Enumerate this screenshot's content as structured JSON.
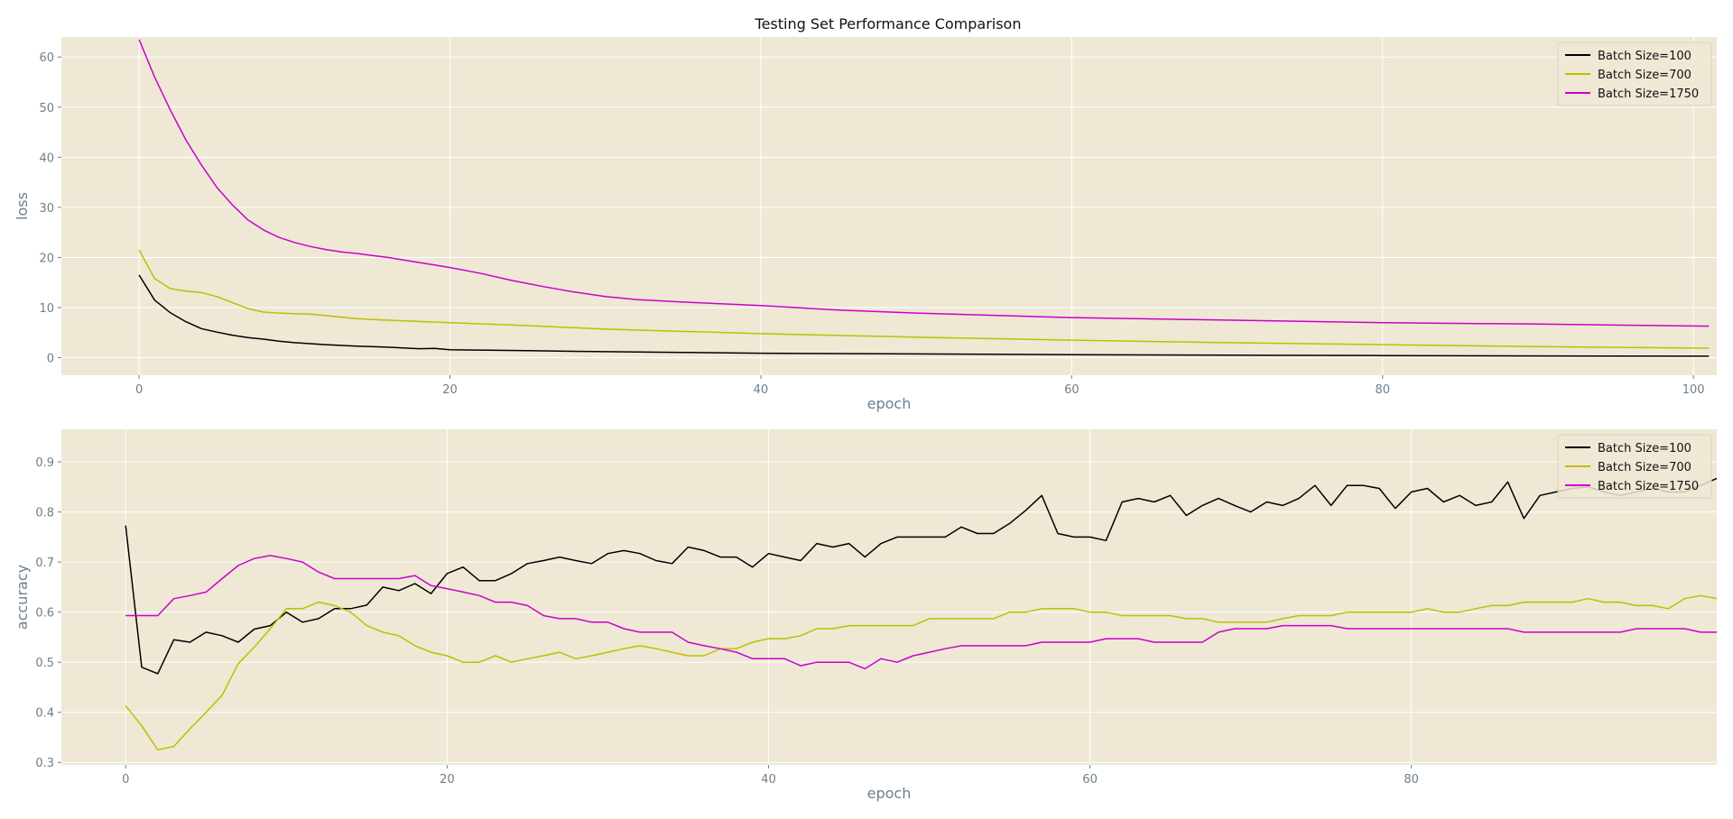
{
  "title": "Testing Set Performance Comparison",
  "chart_data": [
    {
      "type": "line",
      "title": "Testing Set Performance Comparison",
      "xlabel": "epoch",
      "ylabel": "loss",
      "xlim": [
        -5,
        101.5
      ],
      "ylim": [
        -3.5,
        64
      ],
      "xticks": [
        0,
        20,
        40,
        60,
        80,
        100
      ],
      "yticks": [
        0,
        10,
        20,
        30,
        40,
        50,
        60
      ],
      "grid": true,
      "legend_position": "top-right",
      "background_color": "#eee8d5",
      "series": [
        {
          "name": "Batch Size=100",
          "color": "#000000",
          "x": [
            0,
            1,
            2,
            3,
            4,
            5,
            6,
            7,
            8,
            9,
            10,
            12,
            14,
            16,
            18,
            19,
            20,
            25,
            30,
            35,
            40,
            50,
            60,
            70,
            80,
            90,
            101
          ],
          "values": [
            16.5,
            11.5,
            9.0,
            7.2,
            5.8,
            5.1,
            4.5,
            4.0,
            3.7,
            3.3,
            3.0,
            2.6,
            2.3,
            2.1,
            1.8,
            1.85,
            1.6,
            1.4,
            1.2,
            1.05,
            0.9,
            0.75,
            0.6,
            0.5,
            0.42,
            0.35,
            0.3
          ]
        },
        {
          "name": "Batch Size=700",
          "color": "#bfbf00",
          "x": [
            0,
            1,
            2,
            3,
            4,
            5,
            6,
            7,
            8,
            9,
            10,
            11,
            12,
            13,
            14,
            15,
            20,
            25,
            30,
            40,
            50,
            60,
            70,
            80,
            90,
            101
          ],
          "values": [
            21.5,
            15.8,
            13.8,
            13.3,
            13.0,
            12.2,
            11.0,
            9.8,
            9.1,
            8.9,
            8.8,
            8.7,
            8.4,
            8.1,
            7.8,
            7.6,
            7.0,
            6.4,
            5.7,
            4.8,
            4.1,
            3.5,
            3.0,
            2.6,
            2.2,
            1.9
          ]
        },
        {
          "name": "Batch Size=1750",
          "color": "#cc00cc",
          "x": [
            0,
            1,
            2,
            3,
            4,
            5,
            6,
            7,
            8,
            9,
            10,
            11,
            12,
            13,
            14,
            15,
            16,
            17,
            18,
            19,
            20,
            22,
            24,
            26,
            28,
            30,
            32,
            35,
            40,
            45,
            50,
            60,
            70,
            80,
            90,
            101
          ],
          "values": [
            63.5,
            56.0,
            49.5,
            43.5,
            38.5,
            34.0,
            30.5,
            27.5,
            25.5,
            24.0,
            23.0,
            22.2,
            21.6,
            21.1,
            20.8,
            20.4,
            20.0,
            19.5,
            19.0,
            18.5,
            18.0,
            16.8,
            15.4,
            14.2,
            13.1,
            12.2,
            11.6,
            11.1,
            10.4,
            9.5,
            8.9,
            8.0,
            7.5,
            7.0,
            6.7,
            6.3
          ]
        }
      ]
    },
    {
      "type": "line",
      "title": "",
      "xlabel": "epoch",
      "ylabel": "accuracy",
      "xlim": [
        -4,
        99
      ],
      "ylim": [
        0.295,
        0.965
      ],
      "xticks": [
        0,
        20,
        40,
        60,
        80
      ],
      "yticks": [
        0.3,
        0.4,
        0.5,
        0.6,
        0.7,
        0.8,
        0.9
      ],
      "grid": true,
      "legend_position": "top-right",
      "background_color": "#eee8d5",
      "series": [
        {
          "name": "Batch Size=100",
          "color": "#000000",
          "x": [
            0,
            1,
            2,
            3,
            4,
            5,
            6,
            7,
            8,
            9,
            10,
            11,
            12,
            13,
            14,
            15,
            16,
            17,
            18,
            19,
            20,
            21,
            22,
            23,
            24,
            25,
            26,
            27,
            28,
            29,
            30,
            31,
            32,
            33,
            34,
            35,
            36,
            37,
            38,
            39,
            40,
            41,
            42,
            43,
            44,
            45,
            46,
            47,
            48,
            49,
            50,
            51,
            52,
            53,
            54,
            55,
            56,
            57,
            58,
            59,
            60,
            61,
            62,
            63,
            64,
            65,
            66,
            67,
            68,
            69,
            70,
            71,
            72,
            73,
            74,
            75,
            76,
            77,
            78,
            79,
            80,
            81,
            82,
            83,
            84,
            85,
            86,
            87,
            88,
            89,
            90,
            91,
            92,
            93,
            94,
            95,
            96,
            97,
            98,
            99
          ],
          "values": [
            0.773,
            0.49,
            0.477,
            0.545,
            0.54,
            0.56,
            0.553,
            0.54,
            0.566,
            0.573,
            0.6,
            0.58,
            0.587,
            0.607,
            0.607,
            0.614,
            0.65,
            0.643,
            0.657,
            0.637,
            0.677,
            0.69,
            0.663,
            0.663,
            0.677,
            0.697,
            0.703,
            0.71,
            0.703,
            0.697,
            0.717,
            0.723,
            0.717,
            0.703,
            0.697,
            0.73,
            0.723,
            0.71,
            0.71,
            0.69,
            0.717,
            0.71,
            0.703,
            0.737,
            0.73,
            0.737,
            0.71,
            0.737,
            0.75,
            0.75,
            0.75,
            0.75,
            0.77,
            0.757,
            0.757,
            0.777,
            0.803,
            0.833,
            0.757,
            0.75,
            0.75,
            0.743,
            0.82,
            0.827,
            0.82,
            0.833,
            0.793,
            0.813,
            0.827,
            0.813,
            0.8,
            0.82,
            0.813,
            0.827,
            0.853,
            0.813,
            0.853,
            0.853,
            0.847,
            0.807,
            0.84,
            0.847,
            0.82,
            0.833,
            0.813,
            0.82,
            0.86,
            0.787,
            0.833,
            0.84,
            0.847,
            0.85,
            0.84,
            0.833,
            0.84,
            0.847,
            0.84,
            0.84,
            0.853,
            0.867
          ]
        },
        {
          "name": "Batch Size=700",
          "color": "#bfbf00",
          "x": [
            0,
            1,
            2,
            3,
            4,
            5,
            6,
            7,
            8,
            9,
            10,
            11,
            12,
            13,
            14,
            15,
            16,
            17,
            18,
            19,
            20,
            21,
            22,
            23,
            24,
            25,
            26,
            27,
            28,
            29,
            30,
            31,
            32,
            33,
            34,
            35,
            36,
            37,
            38,
            39,
            40,
            41,
            42,
            43,
            44,
            45,
            46,
            47,
            48,
            49,
            50,
            51,
            52,
            53,
            54,
            55,
            56,
            57,
            58,
            59,
            60,
            61,
            62,
            63,
            64,
            65,
            66,
            67,
            68,
            69,
            70,
            71,
            72,
            73,
            74,
            75,
            76,
            77,
            78,
            79,
            80,
            81,
            82,
            83,
            84,
            85,
            86,
            87,
            88,
            89,
            90,
            91,
            92,
            93,
            94,
            95,
            96,
            97,
            98,
            99
          ],
          "values": [
            0.413,
            0.373,
            0.325,
            0.332,
            0.367,
            0.4,
            0.434,
            0.497,
            0.53,
            0.567,
            0.607,
            0.607,
            0.62,
            0.613,
            0.6,
            0.573,
            0.56,
            0.553,
            0.533,
            0.52,
            0.513,
            0.5,
            0.5,
            0.513,
            0.5,
            0.507,
            0.513,
            0.52,
            0.507,
            0.513,
            0.52,
            0.527,
            0.533,
            0.527,
            0.52,
            0.513,
            0.513,
            0.527,
            0.527,
            0.54,
            0.547,
            0.547,
            0.553,
            0.567,
            0.567,
            0.573,
            0.573,
            0.573,
            0.573,
            0.573,
            0.587,
            0.587,
            0.587,
            0.587,
            0.587,
            0.6,
            0.6,
            0.607,
            0.607,
            0.607,
            0.6,
            0.6,
            0.593,
            0.593,
            0.593,
            0.593,
            0.587,
            0.587,
            0.58,
            0.58,
            0.58,
            0.58,
            0.587,
            0.593,
            0.593,
            0.593,
            0.6,
            0.6,
            0.6,
            0.6,
            0.6,
            0.607,
            0.6,
            0.6,
            0.607,
            0.613,
            0.613,
            0.62,
            0.62,
            0.62,
            0.62,
            0.627,
            0.62,
            0.62,
            0.613,
            0.613,
            0.607,
            0.627,
            0.633,
            0.627
          ]
        },
        {
          "name": "Batch Size=1750",
          "color": "#cc00cc",
          "x": [
            0,
            1,
            2,
            3,
            4,
            5,
            6,
            7,
            8,
            9,
            10,
            11,
            12,
            13,
            14,
            15,
            16,
            17,
            18,
            19,
            20,
            21,
            22,
            23,
            24,
            25,
            26,
            27,
            28,
            29,
            30,
            31,
            32,
            33,
            34,
            35,
            36,
            37,
            38,
            39,
            40,
            41,
            42,
            43,
            44,
            45,
            46,
            47,
            48,
            49,
            50,
            51,
            52,
            53,
            54,
            55,
            56,
            57,
            58,
            59,
            60,
            61,
            62,
            63,
            64,
            65,
            66,
            67,
            68,
            69,
            70,
            71,
            72,
            73,
            74,
            75,
            76,
            77,
            78,
            79,
            80,
            81,
            82,
            83,
            84,
            85,
            86,
            87,
            88,
            89,
            90,
            91,
            92,
            93,
            94,
            95,
            96,
            97,
            98,
            99
          ],
          "values": [
            0.593,
            0.593,
            0.593,
            0.627,
            0.633,
            0.64,
            0.667,
            0.693,
            0.707,
            0.713,
            0.707,
            0.7,
            0.68,
            0.667,
            0.667,
            0.667,
            0.667,
            0.667,
            0.673,
            0.653,
            0.647,
            0.64,
            0.633,
            0.62,
            0.62,
            0.613,
            0.593,
            0.587,
            0.587,
            0.58,
            0.58,
            0.567,
            0.56,
            0.56,
            0.56,
            0.54,
            0.533,
            0.527,
            0.52,
            0.507,
            0.507,
            0.507,
            0.493,
            0.5,
            0.5,
            0.5,
            0.487,
            0.507,
            0.5,
            0.513,
            0.52,
            0.527,
            0.533,
            0.533,
            0.533,
            0.533,
            0.533,
            0.54,
            0.54,
            0.54,
            0.54,
            0.547,
            0.547,
            0.547,
            0.54,
            0.54,
            0.54,
            0.54,
            0.56,
            0.567,
            0.567,
            0.567,
            0.573,
            0.573,
            0.573,
            0.573,
            0.567,
            0.567,
            0.567,
            0.567,
            0.567,
            0.567,
            0.567,
            0.567,
            0.567,
            0.567,
            0.567,
            0.56,
            0.56,
            0.56,
            0.56,
            0.56,
            0.56,
            0.56,
            0.567,
            0.567,
            0.567,
            0.567,
            0.56,
            0.56
          ]
        }
      ]
    }
  ]
}
